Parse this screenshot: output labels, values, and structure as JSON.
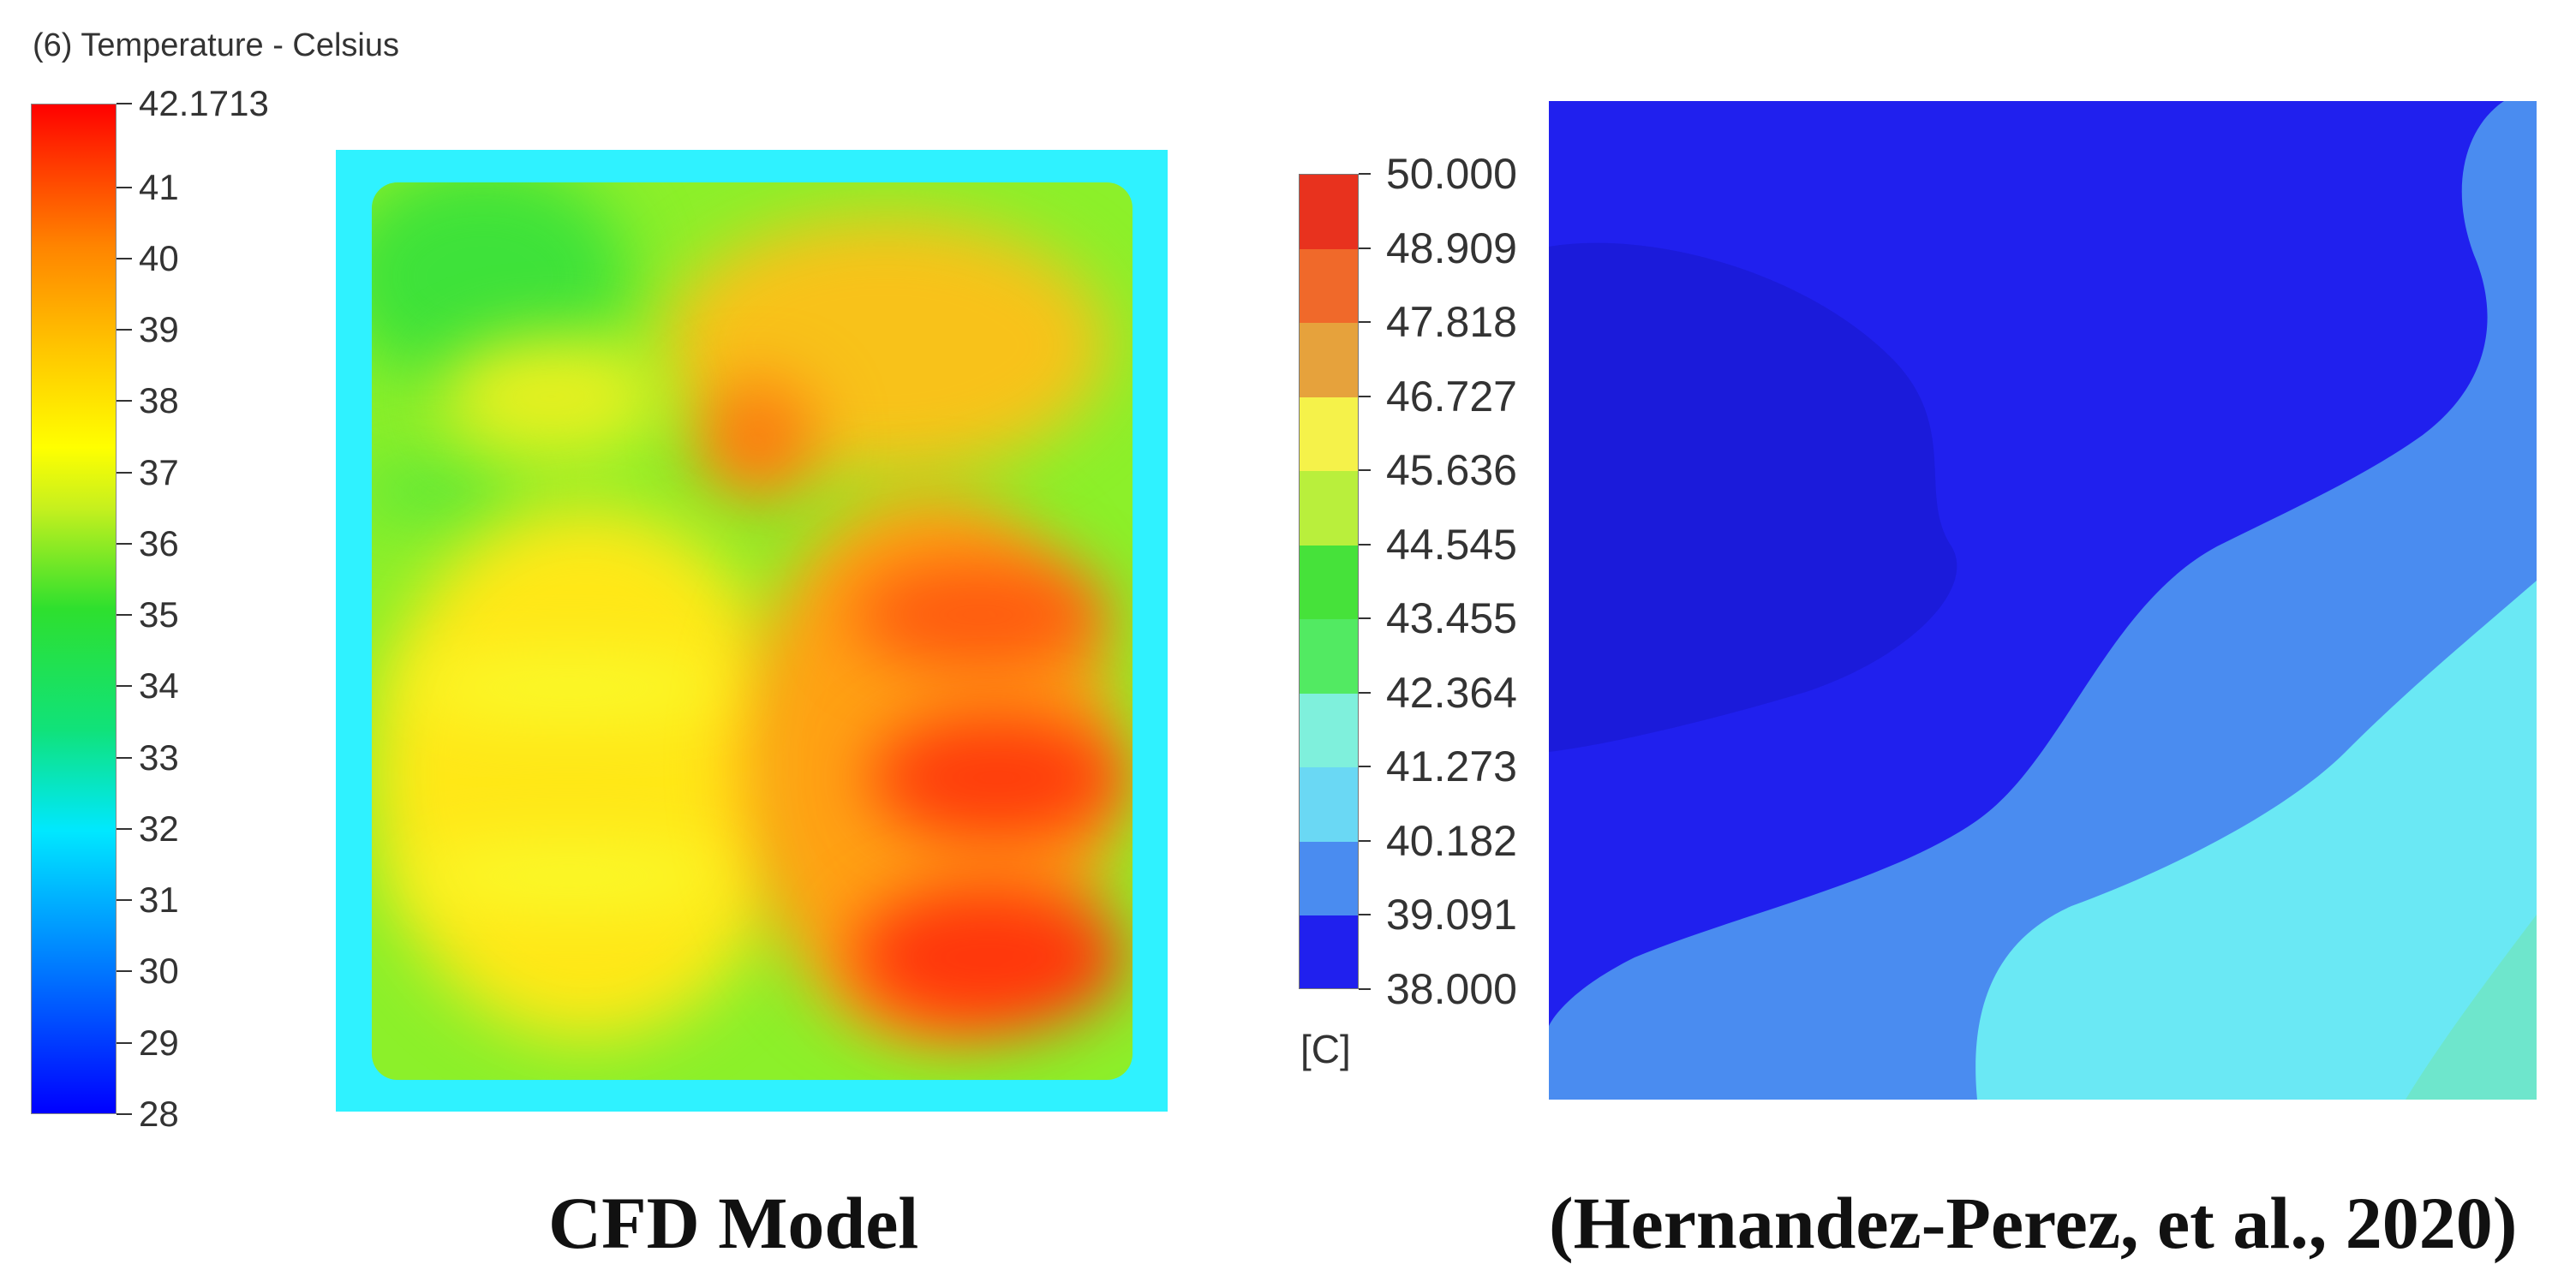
{
  "left_panel": {
    "title": "(6) Temperature - Celsius",
    "legend_labels": [
      "42.1713",
      "41",
      "40",
      "39",
      "38",
      "37",
      "36",
      "35",
      "34",
      "33",
      "32",
      "31",
      "30",
      "29",
      "28"
    ],
    "legend_values": [
      42.1713,
      41,
      40,
      39,
      38,
      37,
      36,
      35,
      34,
      33,
      32,
      31,
      30,
      29,
      28
    ],
    "legend_range": [
      28,
      42.1713
    ],
    "legend_colors": [
      "#0000ff",
      "#00e8ff",
      "#2ee02e",
      "#ffff00",
      "#ff8400",
      "#ff0000"
    ],
    "caption": "CFD Model"
  },
  "right_panel": {
    "legend_labels": [
      "50.000",
      "48.909",
      "47.818",
      "46.727",
      "45.636",
      "44.545",
      "43.455",
      "42.364",
      "41.273",
      "40.182",
      "39.091",
      "38.000"
    ],
    "legend_bands": [
      "#e8321e",
      "#f0692a",
      "#e6a23c",
      "#f5f24a",
      "#b9ef3c",
      "#46e23a",
      "#52ea62",
      "#7ff0dc",
      "#6ad8f4",
      "#4a8cf0",
      "#2020ee"
    ],
    "unit": "[C]",
    "caption": "(Hernandez-Perez, et al., 2020)"
  }
}
